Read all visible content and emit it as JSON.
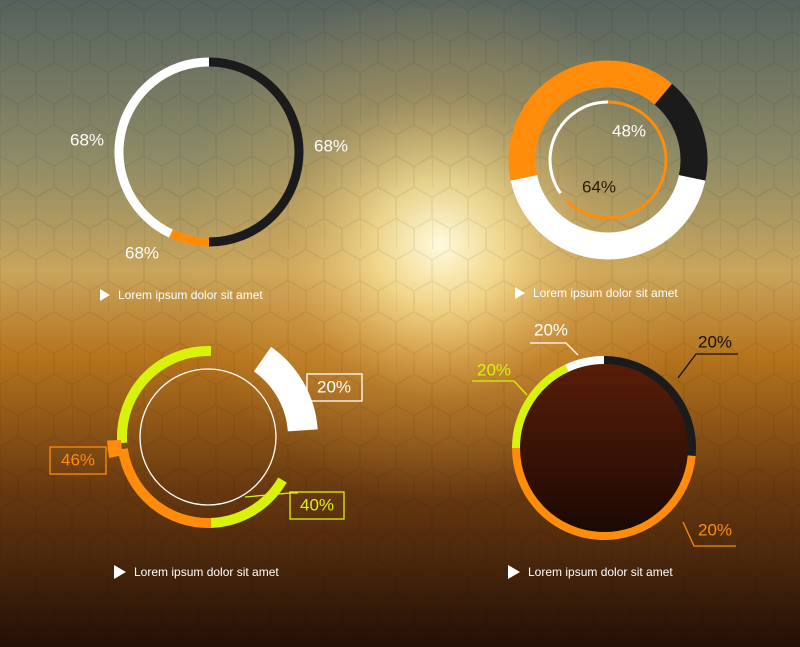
{
  "theme": {
    "white": "#ffffff",
    "black": "#1b1b1b",
    "orange": "#ff8c0a",
    "lime": "#d9f20c",
    "bg_top": "#5f6a63",
    "bg_glow": "#fff6c8",
    "bg_mid": "#b97a20",
    "bg_bottom": "#2a1408"
  },
  "captions": [
    "Lorem ipsum dolor sit amet",
    "Lorem ipsum dolor sit amet",
    "Lorem ipsum dolor sit amet",
    "Lorem ipsum dolor sit amet"
  ],
  "chart_data": [
    {
      "type": "pie",
      "style": "thin ring",
      "slices": [
        {
          "label": "68%",
          "color": "#ffffff"
        },
        {
          "label": "68%",
          "color": "#1b1b1b"
        },
        {
          "label": "68%",
          "color": "#ff8c0a"
        }
      ]
    },
    {
      "type": "pie",
      "style": "thick ring with inner ring",
      "slices": [
        {
          "label": "48%",
          "color": "#1b1b1b"
        },
        {
          "label": "64%",
          "color": "#ff8c0a"
        },
        {
          "color": "#ffffff"
        }
      ]
    },
    {
      "type": "pie",
      "style": "ring with callout boxes",
      "slices": [
        {
          "label": "20%",
          "color": "#ffffff"
        },
        {
          "label": "40%",
          "color": "#d9f20c"
        },
        {
          "label": "46%",
          "color": "#ff8c0a"
        }
      ]
    },
    {
      "type": "pie",
      "style": "filled disc with ring",
      "slices": [
        {
          "label": "20%",
          "color": "#1b1b1b"
        },
        {
          "label": "20%",
          "color": "#ff8c0a"
        },
        {
          "label": "20%",
          "color": "#d9f20c"
        },
        {
          "label": "20%",
          "color": "#ffffff"
        }
      ]
    }
  ]
}
